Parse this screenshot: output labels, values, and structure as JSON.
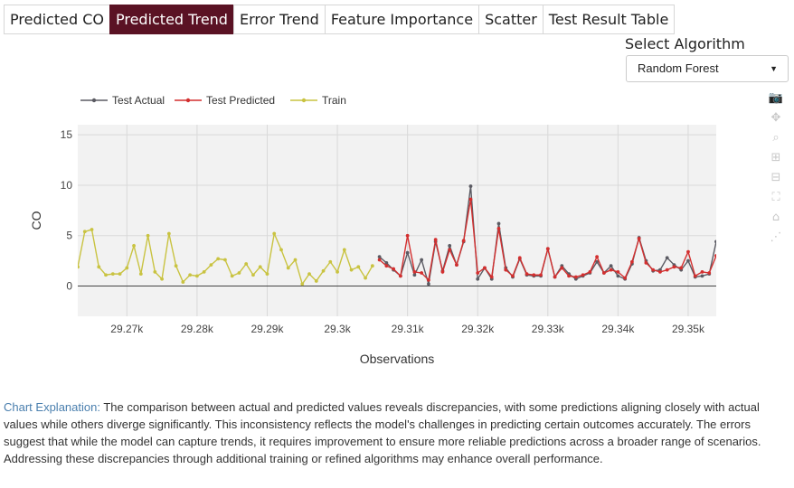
{
  "tabs": [
    {
      "label": "Predicted CO",
      "active": false
    },
    {
      "label": "Predicted Trend",
      "active": true
    },
    {
      "label": "Error Trend",
      "active": false
    },
    {
      "label": "Feature Importance",
      "active": false
    },
    {
      "label": "Scatter",
      "active": false
    },
    {
      "label": "Test Result Table",
      "active": false
    }
  ],
  "algorithm": {
    "label": "Select Algorithm",
    "selected": "Random Forest"
  },
  "modebar": [
    "camera-icon",
    "pan-icon",
    "zoom-icon",
    "zoom-in-icon",
    "zoom-out-icon",
    "autoscale-icon",
    "home-icon",
    "spike-lines-icon"
  ],
  "explanation": {
    "label": "Chart Explanation:",
    "text": "The comparison between actual and predicted values reveals discrepancies, with some predictions aligning closely with actual values while others diverge significantly. This inconsistency reflects the model's challenges in predicting certain outcomes accurately. The errors suggest that while the model can capture trends, it requires improvement to ensure more reliable predictions across a broader range of scenarios. Addressing these discrepancies through additional training or refined algorithms may enhance overall performance."
  },
  "chart_data": {
    "type": "line",
    "xlabel": "Observations",
    "ylabel": "CO",
    "xlim": [
      29263,
      29354
    ],
    "ylim": [
      -3,
      16
    ],
    "xticks": [
      29270,
      29280,
      29290,
      29300,
      29310,
      29320,
      29330,
      29340,
      29350
    ],
    "xtick_labels": [
      "29.27k",
      "29.28k",
      "29.29k",
      "29.3k",
      "29.31k",
      "29.32k",
      "29.33k",
      "29.34k",
      "29.35k"
    ],
    "yticks": [
      0,
      5,
      10,
      15
    ],
    "grid": true,
    "legend_position": "top-left",
    "series": [
      {
        "name": "Test Actual",
        "color": "#5b5b63",
        "x_start": 29306,
        "values": [
          2.9,
          2.3,
          1.6,
          1.0,
          3.3,
          1.1,
          2.6,
          0.2,
          4.4,
          1.5,
          4.0,
          2.1,
          4.4,
          9.9,
          0.7,
          1.8,
          0.7,
          6.2,
          1.8,
          0.9,
          2.7,
          1.1,
          1.0,
          1.0,
          3.7,
          0.9,
          2.0,
          1.2,
          0.7,
          1.0,
          1.3,
          2.4,
          1.3,
          2.0,
          1.0,
          0.7,
          2.2,
          4.8,
          2.5,
          1.5,
          1.6,
          2.8,
          2.1,
          1.6,
          2.5,
          0.9,
          1.0,
          1.2,
          4.4
        ]
      },
      {
        "name": "Test Predicted",
        "color": "#d32f2f",
        "x_start": 29306,
        "values": [
          2.6,
          2.0,
          1.7,
          1.0,
          5.0,
          1.4,
          1.3,
          0.6,
          4.6,
          1.4,
          3.6,
          2.1,
          4.5,
          8.6,
          1.3,
          1.8,
          0.9,
          5.7,
          1.6,
          1.0,
          2.8,
          1.2,
          1.1,
          1.1,
          3.7,
          0.9,
          1.8,
          1.0,
          0.9,
          1.1,
          1.4,
          2.9,
          1.3,
          1.6,
          1.4,
          0.8,
          2.4,
          4.7,
          2.3,
          1.6,
          1.4,
          1.6,
          1.9,
          1.8,
          3.4,
          1.0,
          1.4,
          1.3,
          3.0
        ]
      },
      {
        "name": "Train",
        "color": "#c9c341",
        "x_start": 29263,
        "values": [
          1.9,
          5.4,
          5.6,
          1.9,
          1.1,
          1.2,
          1.2,
          1.8,
          4.0,
          1.2,
          5.0,
          1.4,
          0.7,
          5.2,
          2.0,
          0.4,
          1.1,
          1.0,
          1.4,
          2.1,
          2.7,
          2.6,
          1.0,
          1.3,
          2.2,
          1.1,
          1.9,
          1.2,
          5.2,
          3.6,
          1.8,
          2.6,
          0.2,
          1.2,
          0.5,
          1.5,
          2.4,
          1.4,
          3.6,
          1.6,
          1.9,
          0.8,
          2.0
        ]
      }
    ]
  }
}
